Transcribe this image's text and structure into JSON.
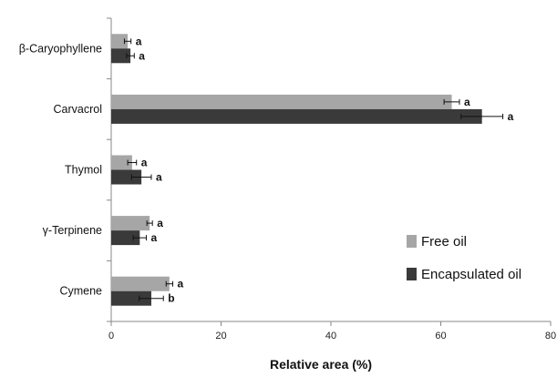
{
  "chart_data": {
    "type": "bar",
    "orientation": "horizontal",
    "categories": [
      "β-Caryophyllene",
      "Carvacrol",
      "Thymol",
      "γ-Terpinene",
      "Cymene"
    ],
    "series": [
      {
        "name": "Free oil",
        "color": "#a6a6a6",
        "values": [
          3.0,
          62.0,
          3.8,
          7.0,
          10.6
        ],
        "errors": [
          0.6,
          1.4,
          0.8,
          0.5,
          0.6
        ],
        "significance": [
          "a",
          "a",
          "a",
          "a",
          "a"
        ]
      },
      {
        "name": "Encapsulated oil",
        "color": "#3a3a3a",
        "values": [
          3.5,
          67.5,
          5.5,
          5.2,
          7.3
        ],
        "errors": [
          0.7,
          3.8,
          1.8,
          1.2,
          2.2
        ],
        "significance": [
          "a",
          "a",
          "a",
          "a",
          "b"
        ]
      }
    ],
    "xlabel": "Relative area (%)",
    "ylabel": "",
    "xlim": [
      0,
      80
    ],
    "xticks": [
      "0",
      "20",
      "40",
      "60",
      "80"
    ],
    "grid": false,
    "legend_position": "bottom-right",
    "error_bars": true
  }
}
